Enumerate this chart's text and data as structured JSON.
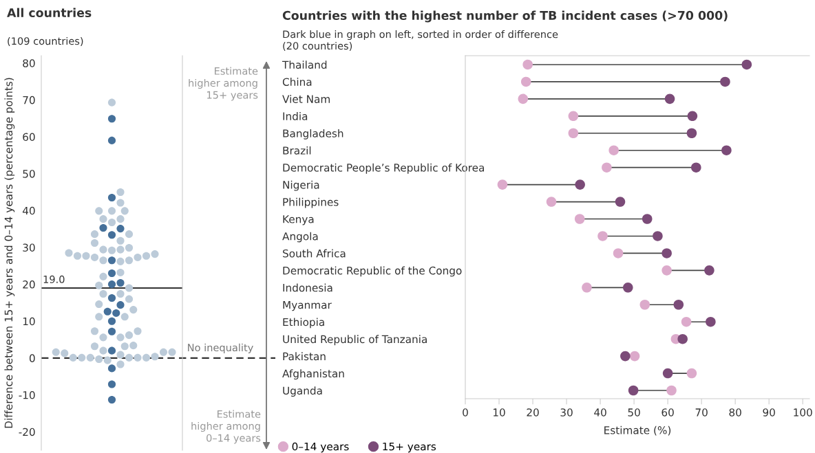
{
  "chart_data": [
    {
      "type": "scatter",
      "title": "All countries",
      "subtitle": "(109 countries)",
      "ylabel": "Difference between 15+ years and 0–14 years (percentage points)",
      "categories": [
        null
      ],
      "series": [
        {
          "color": "#bccbd9",
          "x": [
            null,
            null,
            null,
            null,
            null,
            null,
            null,
            null,
            null,
            null,
            null,
            null,
            null,
            null,
            null,
            null,
            null,
            null,
            null,
            null,
            null,
            null,
            null,
            null,
            null,
            null,
            null,
            null,
            null,
            null,
            null,
            null,
            null,
            null,
            null,
            null,
            null,
            null,
            null,
            null,
            null,
            null,
            null,
            null,
            null,
            null,
            null,
            null,
            null,
            null,
            null,
            null,
            null,
            null,
            null,
            null,
            null,
            null,
            null,
            null,
            null,
            null
          ],
          "values": [
            69.3,
            45.0,
            42.1,
            39.9,
            39.9,
            39.9,
            37.7,
            37.7,
            36.8,
            33.6,
            33.6,
            31.8,
            31.2,
            29.9,
            29.4,
            29.4,
            29.2,
            28.5,
            28.2,
            27.7,
            27.7,
            27.7,
            27.3,
            27.3,
            26.5,
            26.5,
            26.2,
            23.2,
            22.1,
            19.7,
            19.0,
            17.4,
            17.4,
            16.0,
            14.6,
            13.1,
            11.2,
            11.2,
            7.3,
            7.3,
            6.2,
            5.6,
            5.6,
            3.4,
            3.2,
            3.2,
            2.0,
            1.6,
            1.6,
            1.6,
            1.3,
            0.1,
            0.1,
            0.1,
            0.1,
            0.1,
            0.1,
            0.9,
            0.4,
            -0.3,
            -0.6,
            -1.7
          ]
        },
        {
          "color": "#45709a",
          "x": [
            null,
            null,
            null,
            null,
            null,
            null,
            null,
            null,
            null,
            null,
            null,
            null,
            null,
            null,
            null,
            null,
            null,
            null,
            null,
            null
          ],
          "values": [
            64.9,
            59.0,
            43.5,
            35.3,
            35.1,
            33.4,
            26.5,
            23.0,
            20.4,
            20.0,
            16.3,
            14.4,
            12.6,
            12.2,
            10.0,
            7.2,
            2.0,
            -2.8,
            -7.1,
            -11.3
          ]
        }
      ],
      "ylim": [
        -25,
        82
      ],
      "yticks": [
        -20,
        -10,
        0,
        10,
        20,
        30,
        40,
        50,
        60,
        70,
        80
      ],
      "ref_lines": [
        {
          "axis": "y",
          "value": 19.0,
          "label": "19.0",
          "color": "#333333",
          "line_style": "solid"
        },
        {
          "axis": "y",
          "value": 0,
          "label": "No inequality",
          "color": "#333333",
          "line_style": "dashed"
        }
      ],
      "annotations": [
        "Estimate\nhigher among\n15+ years",
        "Estimate\nhigher among\n0–14 years"
      ],
      "marker": "circle"
    },
    {
      "type": "scatter",
      "orientation": "horizontal",
      "title": "Countries with the highest number of TB incident cases (>70 000)",
      "subtitle": "Dark blue in graph on left, sorted in order of difference\n(20 countries)",
      "xlabel": "Estimate (%)",
      "categories": [
        "Thailand",
        "China",
        "Viet Nam",
        "India",
        "Bangladesh",
        "Brazil",
        "Democratic People’s Republic of Korea",
        "Nigeria",
        "Philippines",
        "Kenya",
        "Angola",
        "South Africa",
        "Democratic Republic of the Congo",
        "Indonesia",
        "Myanmar",
        "Ethiopia",
        "United Republic of Tanzania",
        "Pakistan",
        "Afghanistan",
        "Uganda"
      ],
      "series": [
        {
          "name": "0–14 years",
          "color": "#dcaacb",
          "values": [
            18.5,
            18.0,
            17.1,
            32.0,
            32.0,
            44.0,
            41.9,
            11.0,
            25.5,
            33.9,
            40.7,
            45.3,
            59.7,
            36.0,
            53.2,
            65.5,
            62.4,
            50.2,
            67.1,
            61.1
          ]
        },
        {
          "name": "15+ years",
          "color": "#7b4b78",
          "values": [
            83.4,
            77.0,
            60.6,
            67.3,
            67.1,
            77.4,
            68.4,
            34.0,
            45.9,
            53.9,
            57.0,
            59.7,
            72.3,
            48.2,
            63.2,
            72.7,
            64.4,
            47.4,
            60.0,
            49.8
          ]
        }
      ],
      "xlim": [
        0,
        102
      ],
      "xticks": [
        0,
        10,
        20,
        30,
        40,
        50,
        60,
        70,
        80,
        90,
        100
      ],
      "legend": "bottom left",
      "marker": "circle"
    }
  ]
}
